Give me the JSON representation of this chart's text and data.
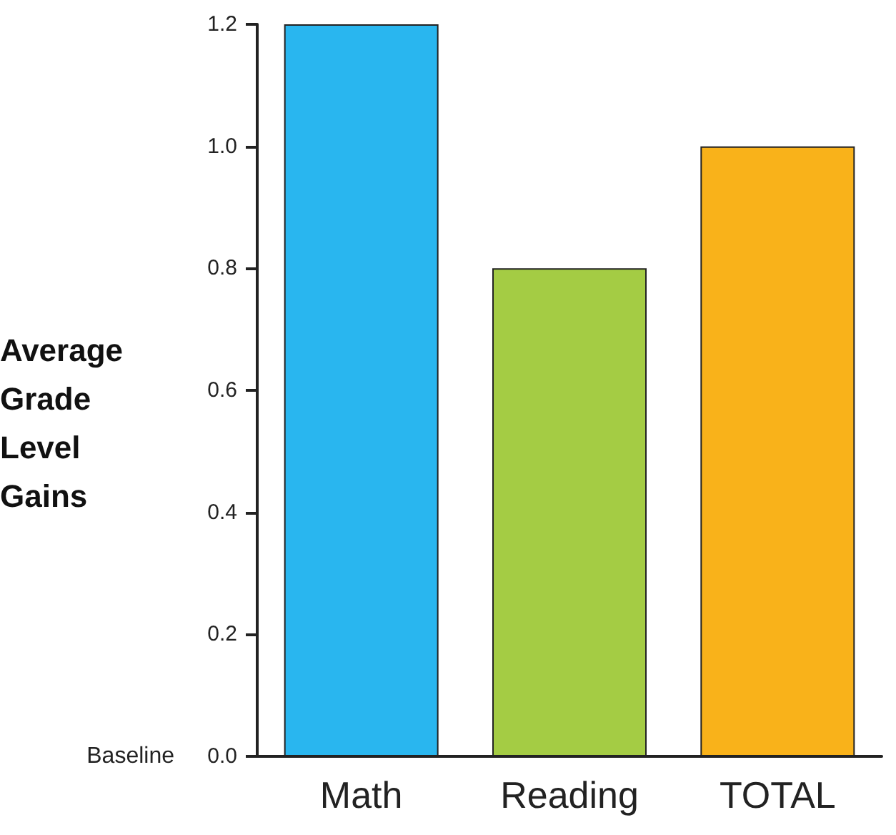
{
  "chart_data": {
    "type": "bar",
    "ylabel": "Average Grade Level Gains",
    "categories": [
      "Math",
      "Reading",
      "TOTAL"
    ],
    "values": [
      1.2,
      0.8,
      1.0
    ],
    "colors": [
      "#29b6ef",
      "#a4cc44",
      "#f9b21a"
    ],
    "ylim": [
      0,
      1.2
    ],
    "yticks": [
      {
        "value": 0,
        "label": "0.0"
      },
      {
        "value": 0.2,
        "label": "0.2"
      },
      {
        "value": 0.4,
        "label": "0.4"
      },
      {
        "value": 0.6,
        "label": "0.6"
      },
      {
        "value": 0.8,
        "label": "0.8"
      },
      {
        "value": 1.0,
        "label": "1.0"
      },
      {
        "value": 1.2,
        "label": "1.2"
      }
    ],
    "annotations": [
      "Baseline"
    ],
    "grid": false
  }
}
